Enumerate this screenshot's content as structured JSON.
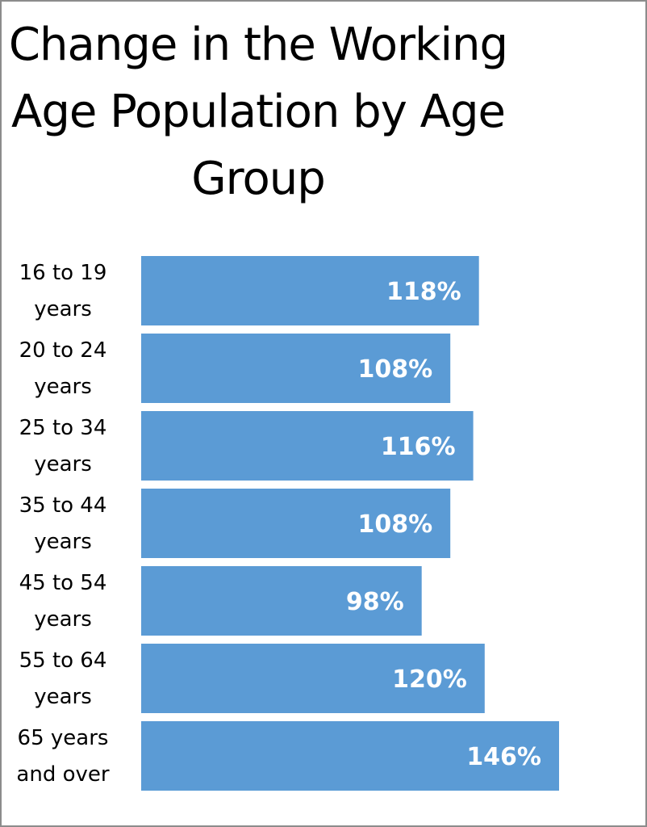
{
  "chart_data": {
    "type": "bar",
    "orientation": "horizontal",
    "title": "Change in the Working Age Population by Age Group",
    "categories": [
      "16 to 19 years",
      "20 to 24 years",
      "25 to 34 years",
      "35 to 44 years",
      "45 to 54 years",
      "55 to 64 years",
      "65 years and over"
    ],
    "category_lines": [
      [
        "16 to 19",
        "years"
      ],
      [
        "20 to 24",
        "years"
      ],
      [
        "25 to 34",
        "years"
      ],
      [
        "35 to 44",
        "years"
      ],
      [
        "45 to 54",
        "years"
      ],
      [
        "55 to 64",
        "years"
      ],
      [
        "65 years",
        "and over"
      ]
    ],
    "values": [
      118,
      108,
      116,
      108,
      98,
      120,
      146
    ],
    "value_labels": [
      "118%",
      "108%",
      "116%",
      "108%",
      "98%",
      "120%",
      "146%"
    ],
    "xlim": [
      0,
      150
    ],
    "grid": false,
    "legend": "none",
    "bar_color": "#5b9bd5",
    "label_color": "#ffffff"
  }
}
